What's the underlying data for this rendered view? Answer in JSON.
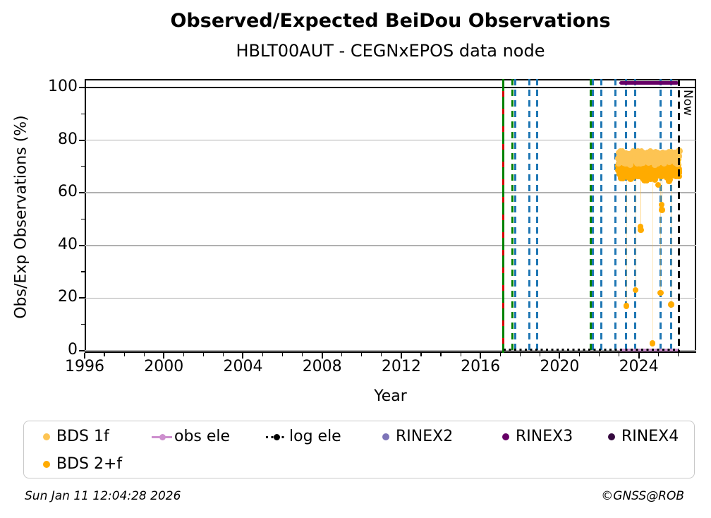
{
  "page": {
    "title": "Observed/Expected BeiDou Observations",
    "subtitle": "HBLT00AUT - CEGNxEPOS data node",
    "footer_left": "Sun Jan 11 12:04:28 2026",
    "footer_right": "©GNSS@ROB"
  },
  "chart_data": {
    "type": "scatter",
    "title": "Observed/Expected BeiDou Observations",
    "subtitle": "HBLT00AUT - CEGNxEPOS data node",
    "xlabel": "Year",
    "ylabel": "Obs/Exp Observations (%)",
    "xlim": [
      1996,
      2026.9
    ],
    "ylim": [
      -0.8,
      103.2
    ],
    "xticks": [
      1996,
      2000,
      2004,
      2008,
      2012,
      2016,
      2020,
      2024
    ],
    "yticks": [
      0,
      20,
      40,
      60,
      80,
      100
    ],
    "minor_x_step": 1,
    "minor_y_step": 10,
    "grid": "horizontal-major-only",
    "grid_color": "#b0b0b0",
    "reference_line": {
      "y": 100,
      "color": "#000000",
      "style": "solid"
    },
    "now_marker": {
      "x": 2026.03,
      "label": "Now",
      "color": "#000000",
      "style": "dashed"
    },
    "events": [
      {
        "x": 2017.17,
        "color": "#008000",
        "style": "solid",
        "overlay_color": "#d40000",
        "overlay_style": "dashed"
      },
      {
        "x": 2017.62,
        "color": "#008000",
        "style": "dashed"
      },
      {
        "x": 2017.76,
        "color": "#1f77b4",
        "style": "dashed"
      },
      {
        "x": 2018.47,
        "color": "#1f77b4",
        "style": "dashed"
      },
      {
        "x": 2018.86,
        "color": "#1f77b4",
        "style": "dashed"
      },
      {
        "x": 2021.56,
        "color": "#008000",
        "style": "dashed"
      },
      {
        "x": 2021.67,
        "color": "#1f77b4",
        "style": "dashed"
      },
      {
        "x": 2022.11,
        "color": "#1f77b4",
        "style": "dashed"
      },
      {
        "x": 2022.82,
        "color": "#1f77b4",
        "style": "dashed"
      },
      {
        "x": 2023.37,
        "color": "#1f77b4",
        "style": "dashed"
      },
      {
        "x": 2023.83,
        "color": "#1f77b4",
        "style": "dashed"
      },
      {
        "x": 2025.1,
        "color": "#1f77b4",
        "style": "dashed"
      },
      {
        "x": 2025.63,
        "color": "#1f77b4",
        "style": "dashed"
      }
    ],
    "series": [
      {
        "name": "obs ele",
        "type": "line",
        "color": "#cd8fce",
        "x_start": 2023.0,
        "x_end": 2026.0,
        "y": 0.3,
        "thickness": 4.5
      },
      {
        "name": "log ele",
        "type": "dotted-line",
        "color": "#000000",
        "x_start": 2017.17,
        "x_end": 2026.03,
        "y": 0.3,
        "thickness": 3
      },
      {
        "name": "BDS 2+f",
        "type": "scatter-cluster",
        "color": "#ffab00",
        "cluster": {
          "x_start": 2022.98,
          "x_end": 2026.05,
          "y_min": 64.3,
          "y_max": 73.5,
          "n": 340
        },
        "outliers": [
          [
            2023.37,
            17
          ],
          [
            2023.62,
            65.5
          ],
          [
            2023.83,
            23
          ],
          [
            2024.09,
            47
          ],
          [
            2024.1,
            45.8
          ],
          [
            2024.69,
            2.8
          ],
          [
            2024.97,
            63
          ],
          [
            2025.1,
            22
          ],
          [
            2025.16,
            55.5
          ],
          [
            2025.17,
            53.5
          ],
          [
            2025.52,
            64.5
          ],
          [
            2025.63,
            17.5
          ]
        ]
      },
      {
        "name": "BDS 1f",
        "type": "scatter-cluster",
        "color": "#fdc453",
        "cluster": {
          "x_start": 2022.98,
          "x_end": 2026.05,
          "y_min": 70.5,
          "y_max": 76.3,
          "n": 260
        },
        "outliers": []
      },
      {
        "name": "RINEX3",
        "type": "line",
        "color": "#660066",
        "x_start": 2023.02,
        "x_end": 2026.02,
        "y": 101.7,
        "thickness": 5.5
      }
    ]
  },
  "legend": {
    "items": [
      {
        "label": "BDS 1f",
        "marker": "dot",
        "color": "#fdc453"
      },
      {
        "label": "obs ele",
        "marker": "line-dot",
        "color": "#cd8fce"
      },
      {
        "label": "log ele",
        "marker": "dotted-line-dot",
        "color": "#000000"
      },
      {
        "label": "RINEX2",
        "marker": "dot",
        "color": "#7d74b8"
      },
      {
        "label": "RINEX3",
        "marker": "dot",
        "color": "#660066"
      },
      {
        "label": "RINEX4",
        "marker": "dot",
        "color": "#35093f"
      },
      {
        "label": "BDS 2+f",
        "marker": "dot",
        "color": "#ffab00"
      }
    ]
  }
}
